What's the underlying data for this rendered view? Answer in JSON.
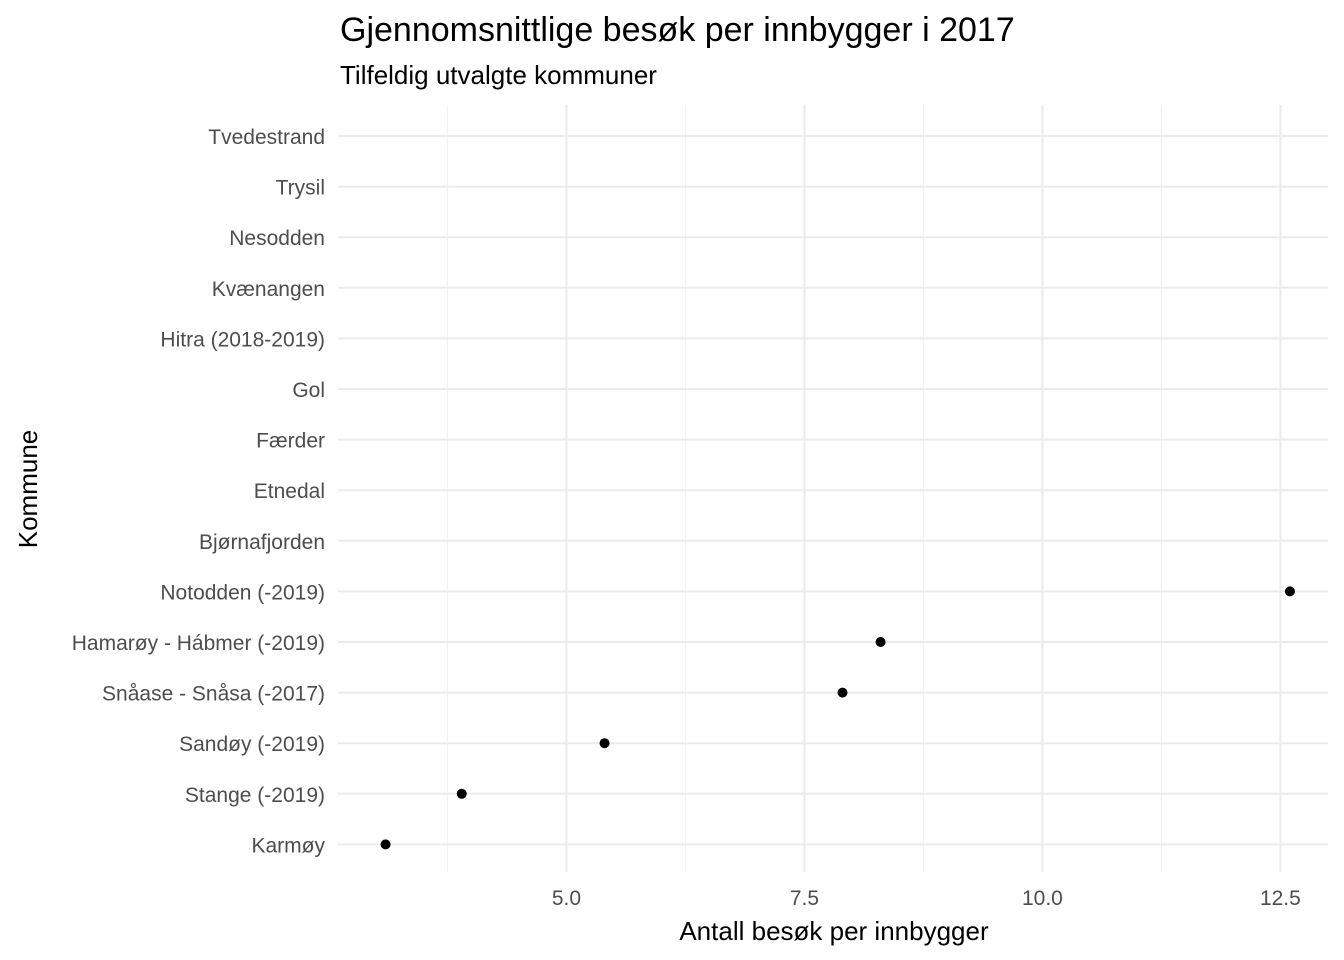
{
  "chart_data": {
    "type": "scatter",
    "title": "Gjennomsnittlige besøk per innbygger i 2017",
    "subtitle": "Tilfeldig utvalgte kommuner",
    "xlabel": "Antall besøk per innbygger",
    "ylabel": "Kommune",
    "xlim": [
      2.6,
      13.0
    ],
    "x_ticks": [
      5.0,
      7.5,
      10.0,
      12.5
    ],
    "x_tick_labels": [
      "5.0",
      "7.5",
      "10.0",
      "12.5"
    ],
    "grid": true,
    "legend": "none",
    "point_color": "#000000",
    "categories": [
      "Tvedestrand",
      "Trysil",
      "Nesodden",
      "Kvænangen",
      "Hitra (2018-2019)",
      "Gol",
      "Færder",
      "Etnedal",
      "Bjørnafjorden",
      "Notodden (-2019)",
      "Hamarøy - Hábmer (-2019)",
      "Snåase - Snåsa (-2017)",
      "Sandøy (-2019)",
      "Stange (-2019)",
      "Karmøy"
    ],
    "values": [
      null,
      null,
      null,
      null,
      null,
      null,
      null,
      null,
      null,
      12.6,
      8.3,
      7.9,
      5.4,
      3.9,
      3.1
    ]
  }
}
